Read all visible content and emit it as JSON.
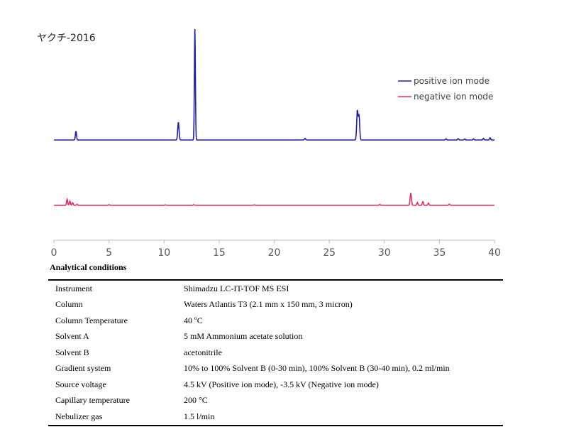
{
  "chart_title": "ヤクチ-2016",
  "chart_data": {
    "type": "line",
    "title": "ヤクチ-2016",
    "xlim": [
      0,
      40
    ],
    "x_ticks": [
      0,
      5,
      10,
      15,
      20,
      25,
      30,
      35,
      40
    ],
    "x_tick_labels": [
      "0",
      "5",
      "10",
      "15",
      "20",
      "25",
      "30",
      "35",
      "40"
    ],
    "legend_position": "top-right",
    "series": [
      {
        "name": "positive ion mode",
        "color": "#1f1fa8",
        "peaks": [
          {
            "x": 2.0,
            "h": 0.08
          },
          {
            "x": 11.3,
            "h": 0.16
          },
          {
            "x": 12.8,
            "h": 1.0
          },
          {
            "x": 22.8,
            "h": 0.015
          },
          {
            "x": 27.55,
            "h": 0.26
          },
          {
            "x": 27.7,
            "h": 0.22
          },
          {
            "x": 35.6,
            "h": 0.01
          },
          {
            "x": 36.7,
            "h": 0.012
          },
          {
            "x": 37.3,
            "h": 0.01
          },
          {
            "x": 38.1,
            "h": 0.01
          },
          {
            "x": 39.0,
            "h": 0.015
          },
          {
            "x": 39.6,
            "h": 0.02
          }
        ]
      },
      {
        "name": "negative ion mode",
        "color": "#d9306a",
        "peaks": [
          {
            "x": 1.2,
            "h": 0.055
          },
          {
            "x": 1.45,
            "h": 0.04
          },
          {
            "x": 1.7,
            "h": 0.025
          },
          {
            "x": 2.1,
            "h": 0.01
          },
          {
            "x": 5.0,
            "h": 0.006
          },
          {
            "x": 10.1,
            "h": 0.005
          },
          {
            "x": 12.7,
            "h": 0.006
          },
          {
            "x": 18.2,
            "h": 0.005
          },
          {
            "x": 29.6,
            "h": 0.008
          },
          {
            "x": 32.4,
            "h": 0.11
          },
          {
            "x": 33.0,
            "h": 0.025
          },
          {
            "x": 33.5,
            "h": 0.035
          },
          {
            "x": 34.0,
            "h": 0.02
          },
          {
            "x": 35.9,
            "h": 0.012
          }
        ]
      }
    ]
  },
  "conditions": {
    "heading": "Analytical conditions",
    "rows": [
      {
        "key": "Instrument",
        "value": "Shimadzu LC-IT-TOF MS ESI"
      },
      {
        "key": "Column",
        "value": "Waters Atlantis T3 (2.1 mm x 150 mm, 3 micron)"
      },
      {
        "key": "Column Temperature",
        "value": "40 ºC"
      },
      {
        "key": "Solvent A",
        "value": "5 mM Ammonium acetate solution"
      },
      {
        "key": "Solvent B",
        "value": "acetonitrile"
      },
      {
        "key": "Gradient system",
        "value": "10% to 100% Solvent B (0-30 min), 100% Solvent B (30-40 min), 0.2 ml/min"
      },
      {
        "key": "Source voltage",
        "value": "4.5 kV (Positive ion mode), -3.5 kV (Negative ion mode)"
      },
      {
        "key": "Capillary temperature",
        "value": "200 °C"
      },
      {
        "key": "Nebulizer gas",
        "value": "1.5 l/min"
      }
    ]
  }
}
